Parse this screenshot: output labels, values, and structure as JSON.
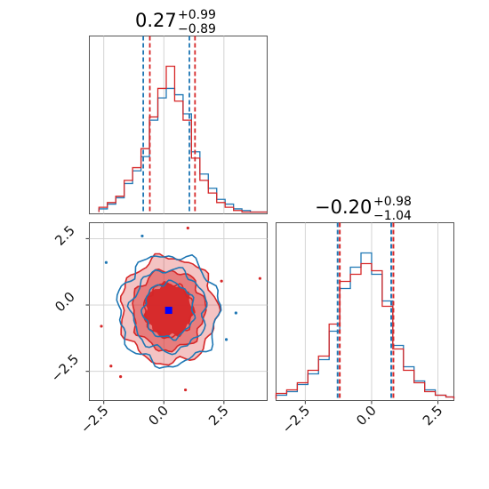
{
  "chart_data": {
    "type": "corner-plot",
    "colors": {
      "series_a": "#1f77b4",
      "series_b": "#d62728",
      "truth": "#0000ff"
    },
    "series": [
      {
        "color": "#1f77b4",
        "param1_quantiles": {
          "q16": -0.82,
          "q50": 0.27,
          "q84": 1.1
        },
        "param2_quantiles": {
          "q16": -1.24,
          "q50": -0.2,
          "q84": 0.78
        }
      },
      {
        "color": "#d62728",
        "param1_quantiles": {
          "q16": -0.62,
          "q50": 0.27,
          "q84": 1.26
        },
        "param2_quantiles": {
          "q16": -1.24,
          "q50": -0.2,
          "q84": 0.78
        }
      }
    ],
    "truth_marker": {
      "x": 0.2,
      "y": -0.2,
      "color": "#0000ff",
      "shape": "square"
    },
    "titles": {
      "param1": {
        "value": "0.27",
        "upper": "+0.99",
        "lower": "−0.89"
      },
      "param2": {
        "value": "−0.20",
        "upper": "+0.98",
        "lower": "−1.04"
      }
    },
    "axes": {
      "x_range": [
        -3.1,
        4.3
      ],
      "y_range": [
        -3.6,
        3.1
      ],
      "param2_range": [
        -3.6,
        3.1
      ],
      "x_ticks": [
        -2.5,
        0.0,
        2.5
      ],
      "x_tick_labels": [
        "−2.5",
        "0.0",
        "2.5"
      ],
      "y_ticks": [
        -2.5,
        0.0,
        2.5
      ],
      "y_tick_labels": [
        "−2.5",
        "0.0",
        "2.5"
      ],
      "grid": true,
      "tick_label_rotation_deg": 45
    },
    "hist_param1": {
      "bins": [
        -2.7,
        -2.35,
        -2.0,
        -1.65,
        -1.3,
        -0.95,
        -0.6,
        -0.25,
        0.1,
        0.45,
        0.8,
        1.15,
        1.5,
        1.85,
        2.2,
        2.55,
        2.9,
        3.25,
        3.6,
        4.3
      ],
      "series_a": [
        0.02,
        0.05,
        0.09,
        0.18,
        0.26,
        0.35,
        0.58,
        0.72,
        0.78,
        0.74,
        0.62,
        0.38,
        0.24,
        0.15,
        0.08,
        0.05,
        0.02,
        0.01,
        0.0
      ],
      "series_b": [
        0.03,
        0.06,
        0.1,
        0.2,
        0.28,
        0.4,
        0.6,
        0.78,
        0.92,
        0.7,
        0.58,
        0.34,
        0.2,
        0.12,
        0.06,
        0.03,
        0.01,
        0.0,
        0.0
      ]
    },
    "hist_param2": {
      "bins": [
        -3.6,
        -3.2,
        -2.8,
        -2.4,
        -2.0,
        -1.6,
        -1.2,
        -0.8,
        -0.4,
        0.0,
        0.4,
        0.8,
        1.2,
        1.6,
        2.0,
        2.4,
        2.8,
        3.1
      ],
      "series_a": [
        0.02,
        0.04,
        0.08,
        0.14,
        0.22,
        0.38,
        0.62,
        0.74,
        0.82,
        0.7,
        0.55,
        0.3,
        0.18,
        0.1,
        0.05,
        0.02,
        0.01
      ],
      "series_b": [
        0.03,
        0.05,
        0.09,
        0.16,
        0.24,
        0.42,
        0.66,
        0.7,
        0.76,
        0.72,
        0.52,
        0.28,
        0.16,
        0.09,
        0.04,
        0.02,
        0.01
      ]
    },
    "contours_2d": {
      "center": [
        0.2,
        -0.2
      ],
      "levels_sigma": [
        0.5,
        1.0,
        1.5,
        2.0
      ],
      "fill_alphas": [
        0.95,
        0.55,
        0.3
      ]
    }
  }
}
